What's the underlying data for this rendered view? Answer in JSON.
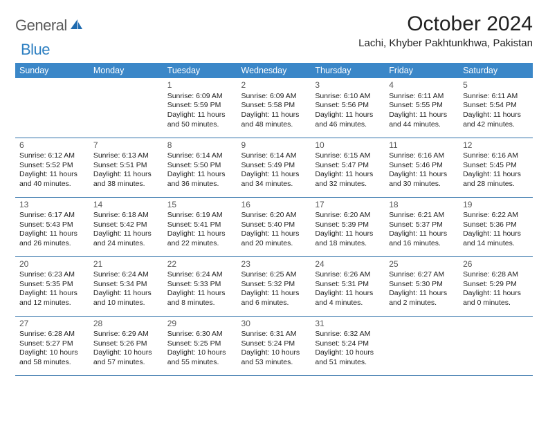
{
  "logo": {
    "text_gray": "General",
    "text_blue": "Blue"
  },
  "title": "October 2024",
  "location": "Lachi, Khyber Pakhtunkhwa, Pakistan",
  "colors": {
    "header_bg": "#3b87c8",
    "header_text": "#ffffff",
    "row_border": "#2d6fa8",
    "logo_gray": "#5a5a5a",
    "logo_blue": "#2d7fc1",
    "body_text": "#222222"
  },
  "typography": {
    "title_fontsize": 30,
    "location_fontsize": 15,
    "dayheader_fontsize": 12.5,
    "cell_fontsize": 10.5
  },
  "day_headers": [
    "Sunday",
    "Monday",
    "Tuesday",
    "Wednesday",
    "Thursday",
    "Friday",
    "Saturday"
  ],
  "weeks": [
    [
      {
        "day": "",
        "sunrise": "",
        "sunset": "",
        "daylight1": "",
        "daylight2": ""
      },
      {
        "day": "",
        "sunrise": "",
        "sunset": "",
        "daylight1": "",
        "daylight2": ""
      },
      {
        "day": "1",
        "sunrise": "Sunrise: 6:09 AM",
        "sunset": "Sunset: 5:59 PM",
        "daylight1": "Daylight: 11 hours",
        "daylight2": "and 50 minutes."
      },
      {
        "day": "2",
        "sunrise": "Sunrise: 6:09 AM",
        "sunset": "Sunset: 5:58 PM",
        "daylight1": "Daylight: 11 hours",
        "daylight2": "and 48 minutes."
      },
      {
        "day": "3",
        "sunrise": "Sunrise: 6:10 AM",
        "sunset": "Sunset: 5:56 PM",
        "daylight1": "Daylight: 11 hours",
        "daylight2": "and 46 minutes."
      },
      {
        "day": "4",
        "sunrise": "Sunrise: 6:11 AM",
        "sunset": "Sunset: 5:55 PM",
        "daylight1": "Daylight: 11 hours",
        "daylight2": "and 44 minutes."
      },
      {
        "day": "5",
        "sunrise": "Sunrise: 6:11 AM",
        "sunset": "Sunset: 5:54 PM",
        "daylight1": "Daylight: 11 hours",
        "daylight2": "and 42 minutes."
      }
    ],
    [
      {
        "day": "6",
        "sunrise": "Sunrise: 6:12 AM",
        "sunset": "Sunset: 5:52 PM",
        "daylight1": "Daylight: 11 hours",
        "daylight2": "and 40 minutes."
      },
      {
        "day": "7",
        "sunrise": "Sunrise: 6:13 AM",
        "sunset": "Sunset: 5:51 PM",
        "daylight1": "Daylight: 11 hours",
        "daylight2": "and 38 minutes."
      },
      {
        "day": "8",
        "sunrise": "Sunrise: 6:14 AM",
        "sunset": "Sunset: 5:50 PM",
        "daylight1": "Daylight: 11 hours",
        "daylight2": "and 36 minutes."
      },
      {
        "day": "9",
        "sunrise": "Sunrise: 6:14 AM",
        "sunset": "Sunset: 5:49 PM",
        "daylight1": "Daylight: 11 hours",
        "daylight2": "and 34 minutes."
      },
      {
        "day": "10",
        "sunrise": "Sunrise: 6:15 AM",
        "sunset": "Sunset: 5:47 PM",
        "daylight1": "Daylight: 11 hours",
        "daylight2": "and 32 minutes."
      },
      {
        "day": "11",
        "sunrise": "Sunrise: 6:16 AM",
        "sunset": "Sunset: 5:46 PM",
        "daylight1": "Daylight: 11 hours",
        "daylight2": "and 30 minutes."
      },
      {
        "day": "12",
        "sunrise": "Sunrise: 6:16 AM",
        "sunset": "Sunset: 5:45 PM",
        "daylight1": "Daylight: 11 hours",
        "daylight2": "and 28 minutes."
      }
    ],
    [
      {
        "day": "13",
        "sunrise": "Sunrise: 6:17 AM",
        "sunset": "Sunset: 5:43 PM",
        "daylight1": "Daylight: 11 hours",
        "daylight2": "and 26 minutes."
      },
      {
        "day": "14",
        "sunrise": "Sunrise: 6:18 AM",
        "sunset": "Sunset: 5:42 PM",
        "daylight1": "Daylight: 11 hours",
        "daylight2": "and 24 minutes."
      },
      {
        "day": "15",
        "sunrise": "Sunrise: 6:19 AM",
        "sunset": "Sunset: 5:41 PM",
        "daylight1": "Daylight: 11 hours",
        "daylight2": "and 22 minutes."
      },
      {
        "day": "16",
        "sunrise": "Sunrise: 6:20 AM",
        "sunset": "Sunset: 5:40 PM",
        "daylight1": "Daylight: 11 hours",
        "daylight2": "and 20 minutes."
      },
      {
        "day": "17",
        "sunrise": "Sunrise: 6:20 AM",
        "sunset": "Sunset: 5:39 PM",
        "daylight1": "Daylight: 11 hours",
        "daylight2": "and 18 minutes."
      },
      {
        "day": "18",
        "sunrise": "Sunrise: 6:21 AM",
        "sunset": "Sunset: 5:37 PM",
        "daylight1": "Daylight: 11 hours",
        "daylight2": "and 16 minutes."
      },
      {
        "day": "19",
        "sunrise": "Sunrise: 6:22 AM",
        "sunset": "Sunset: 5:36 PM",
        "daylight1": "Daylight: 11 hours",
        "daylight2": "and 14 minutes."
      }
    ],
    [
      {
        "day": "20",
        "sunrise": "Sunrise: 6:23 AM",
        "sunset": "Sunset: 5:35 PM",
        "daylight1": "Daylight: 11 hours",
        "daylight2": "and 12 minutes."
      },
      {
        "day": "21",
        "sunrise": "Sunrise: 6:24 AM",
        "sunset": "Sunset: 5:34 PM",
        "daylight1": "Daylight: 11 hours",
        "daylight2": "and 10 minutes."
      },
      {
        "day": "22",
        "sunrise": "Sunrise: 6:24 AM",
        "sunset": "Sunset: 5:33 PM",
        "daylight1": "Daylight: 11 hours",
        "daylight2": "and 8 minutes."
      },
      {
        "day": "23",
        "sunrise": "Sunrise: 6:25 AM",
        "sunset": "Sunset: 5:32 PM",
        "daylight1": "Daylight: 11 hours",
        "daylight2": "and 6 minutes."
      },
      {
        "day": "24",
        "sunrise": "Sunrise: 6:26 AM",
        "sunset": "Sunset: 5:31 PM",
        "daylight1": "Daylight: 11 hours",
        "daylight2": "and 4 minutes."
      },
      {
        "day": "25",
        "sunrise": "Sunrise: 6:27 AM",
        "sunset": "Sunset: 5:30 PM",
        "daylight1": "Daylight: 11 hours",
        "daylight2": "and 2 minutes."
      },
      {
        "day": "26",
        "sunrise": "Sunrise: 6:28 AM",
        "sunset": "Sunset: 5:29 PM",
        "daylight1": "Daylight: 11 hours",
        "daylight2": "and 0 minutes."
      }
    ],
    [
      {
        "day": "27",
        "sunrise": "Sunrise: 6:28 AM",
        "sunset": "Sunset: 5:27 PM",
        "daylight1": "Daylight: 10 hours",
        "daylight2": "and 58 minutes."
      },
      {
        "day": "28",
        "sunrise": "Sunrise: 6:29 AM",
        "sunset": "Sunset: 5:26 PM",
        "daylight1": "Daylight: 10 hours",
        "daylight2": "and 57 minutes."
      },
      {
        "day": "29",
        "sunrise": "Sunrise: 6:30 AM",
        "sunset": "Sunset: 5:25 PM",
        "daylight1": "Daylight: 10 hours",
        "daylight2": "and 55 minutes."
      },
      {
        "day": "30",
        "sunrise": "Sunrise: 6:31 AM",
        "sunset": "Sunset: 5:24 PM",
        "daylight1": "Daylight: 10 hours",
        "daylight2": "and 53 minutes."
      },
      {
        "day": "31",
        "sunrise": "Sunrise: 6:32 AM",
        "sunset": "Sunset: 5:24 PM",
        "daylight1": "Daylight: 10 hours",
        "daylight2": "and 51 minutes."
      },
      {
        "day": "",
        "sunrise": "",
        "sunset": "",
        "daylight1": "",
        "daylight2": ""
      },
      {
        "day": "",
        "sunrise": "",
        "sunset": "",
        "daylight1": "",
        "daylight2": ""
      }
    ]
  ]
}
